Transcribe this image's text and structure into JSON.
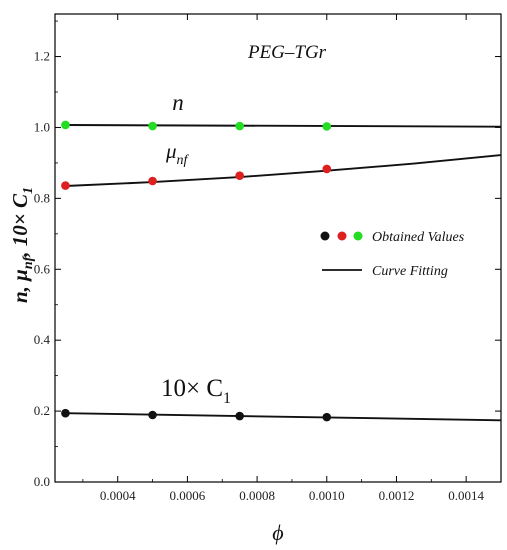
{
  "chart_data": {
    "type": "scatter",
    "title": "PEG–TGr",
    "xlabel": "ϕ",
    "ylabel_parts": [
      "n, μ",
      "nf",
      ", 10× C",
      "1"
    ],
    "xlim": [
      0.00022,
      0.0015
    ],
    "ylim": [
      0.0,
      1.32
    ],
    "xticks": [
      "0.0004",
      "0.0006",
      "0.0008",
      "0.0010",
      "0.0012",
      "0.0014"
    ],
    "xtick_values": [
      0.0004,
      0.0006,
      0.0008,
      0.001,
      0.0012,
      0.0014
    ],
    "yticks": [
      "0.0",
      "0.2",
      "0.4",
      "0.6",
      "0.8",
      "1.0",
      "1.2"
    ],
    "ytick_values": [
      0.0,
      0.2,
      0.4,
      0.6,
      0.8,
      1.0,
      1.2
    ],
    "grid": false,
    "legend_position": "center-right",
    "series": [
      {
        "color": "#22dd22",
        "x": [
          0.00025,
          0.0005,
          0.00075,
          0.001
        ],
        "y": [
          1.007,
          1.004,
          1.004,
          1.003
        ],
        "fit": {
          "x": [
            0.00025,
            0.0015
          ],
          "y": [
            1.007,
            1.002
          ]
        }
      },
      {
        "color": "#dd1f1f",
        "x": [
          0.00025,
          0.0005,
          0.00075,
          0.001
        ],
        "y": [
          0.836,
          0.849,
          0.864,
          0.883
        ],
        "fit": {
          "x": [
            0.00025,
            0.0005,
            0.00075,
            0.001,
            0.00125,
            0.0015
          ],
          "y": [
            0.835,
            0.846,
            0.86,
            0.878,
            0.898,
            0.922
          ]
        }
      },
      {
        "color": "#111111",
        "x": [
          0.00025,
          0.0005,
          0.00075,
          0.001
        ],
        "y": [
          0.194,
          0.189,
          0.186,
          0.183
        ],
        "fit": {
          "x": [
            0.00025,
            0.0015
          ],
          "y": [
            0.194,
            0.174
          ]
        }
      }
    ],
    "annotations": {
      "n_label": "n",
      "mu_label": [
        "μ",
        "nf"
      ],
      "c1_label": [
        "10× C",
        "1"
      ]
    },
    "legend": {
      "dot_colors": [
        "#111111",
        "#dd1f1f",
        "#22dd22"
      ],
      "obtained_label": "Obtained Values",
      "fit_label": "Curve Fitting"
    }
  }
}
